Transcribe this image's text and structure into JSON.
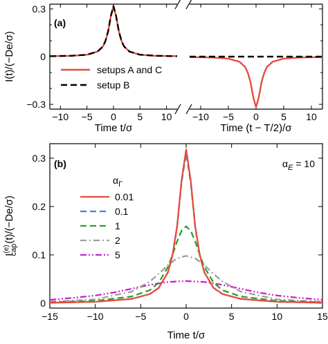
{
  "chart_data": [
    {
      "panel": "(a)",
      "type": "line",
      "ylabel": "I(t)/(−De/σ)",
      "ylim": [
        -0.33,
        0.33
      ],
      "yticks": [
        "0.3",
        "0",
        "−0.3"
      ],
      "axis_break": true,
      "left": {
        "xlabel": "Time t/σ",
        "xlim": [
          -12,
          12
        ],
        "xticks": [
          "−10",
          "−5",
          "0",
          "5",
          "10"
        ]
      },
      "right": {
        "xlabel": "Time (t − T/2)/σ",
        "xlim": [
          -12,
          12
        ],
        "xticks": [
          "−10",
          "−5",
          "0",
          "5",
          "10"
        ]
      },
      "legend_position": "bottom-left",
      "series": [
        {
          "name": "setups A and C",
          "color": "#e64b3c",
          "style": "solid",
          "left": {
            "x": [
              -12,
              -8,
              -5,
              -3,
              -2,
              -1.5,
              -1,
              -0.5,
              0,
              0.5,
              1,
              1.5,
              2,
              3,
              5,
              8,
              12
            ],
            "y": [
              0.003,
              0.005,
              0.012,
              0.032,
              0.064,
              0.1,
              0.16,
              0.255,
              0.318,
              0.255,
              0.16,
              0.1,
              0.064,
              0.032,
              0.012,
              0.005,
              0.003
            ]
          },
          "right": {
            "x": [
              -12,
              -8,
              -5,
              -3,
              -2,
              -1.5,
              -1,
              -0.5,
              0,
              0.5,
              1,
              1.5,
              2,
              3,
              5,
              8,
              12
            ],
            "y": [
              -0.003,
              -0.005,
              -0.012,
              -0.032,
              -0.064,
              -0.1,
              -0.16,
              -0.255,
              -0.318,
              -0.255,
              -0.16,
              -0.1,
              -0.064,
              -0.032,
              -0.012,
              -0.005,
              -0.003
            ]
          }
        },
        {
          "name": "setup B",
          "color": "#000000",
          "style": "dashed",
          "left": {
            "x": [
              -12,
              -8,
              -5,
              -3,
              -2,
              -1.5,
              -1,
              -0.5,
              0,
              0.5,
              1,
              1.5,
              2,
              3,
              5,
              8,
              12
            ],
            "y": [
              0.003,
              0.005,
              0.012,
              0.032,
              0.064,
              0.1,
              0.16,
              0.255,
              0.318,
              0.255,
              0.16,
              0.1,
              0.064,
              0.032,
              0.012,
              0.005,
              0.003
            ]
          },
          "right": {
            "x": [
              -12,
              12
            ],
            "y": [
              0,
              0
            ]
          }
        }
      ]
    },
    {
      "panel": "(b)",
      "type": "line",
      "ylabel": "I_cap^(e)(t)/(−De/σ)",
      "xlabel": "Time t/σ",
      "xlim": [
        -15,
        15
      ],
      "ylim": [
        -0.01,
        0.33
      ],
      "xticks": [
        "−15",
        "−10",
        "−5",
        "0",
        "5",
        "10",
        "15"
      ],
      "yticks": [
        "0",
        "0.1",
        "0.2",
        "0.3"
      ],
      "annotation": "α_E = 10",
      "legend_title": "α_Γ",
      "legend_position": "middle-left",
      "series": [
        {
          "name": "0.01",
          "color": "#e64b3c",
          "style": "solid",
          "x": [
            -15,
            -10,
            -6,
            -4,
            -3,
            -2,
            -1.5,
            -1,
            -0.5,
            0,
            0.5,
            1,
            1.5,
            2,
            3,
            4,
            6,
            10,
            15
          ],
          "y": [
            0.001,
            0.003,
            0.009,
            0.019,
            0.032,
            0.064,
            0.1,
            0.159,
            0.254,
            0.318,
            0.254,
            0.159,
            0.1,
            0.064,
            0.032,
            0.019,
            0.009,
            0.003,
            0.001
          ]
        },
        {
          "name": "0.1",
          "color": "#4a7fd4",
          "style": "dashed",
          "x": [
            -15,
            -10,
            -6,
            -4,
            -3,
            -2,
            -1.5,
            -1,
            -0.5,
            0,
            0.5,
            1,
            1.5,
            2,
            3,
            4,
            6,
            10,
            15
          ],
          "y": [
            0.001,
            0.003,
            0.009,
            0.019,
            0.032,
            0.064,
            0.099,
            0.157,
            0.25,
            0.31,
            0.25,
            0.157,
            0.099,
            0.064,
            0.032,
            0.019,
            0.009,
            0.003,
            0.001
          ]
        },
        {
          "name": "1",
          "color": "#2aa12a",
          "style": "dashed",
          "x": [
            -15,
            -10,
            -6,
            -4,
            -3,
            -2,
            -1.5,
            -1,
            -0.5,
            0,
            0.5,
            1,
            1.5,
            2,
            3,
            4,
            6,
            10,
            15
          ],
          "y": [
            0.002,
            0.005,
            0.014,
            0.027,
            0.043,
            0.075,
            0.1,
            0.128,
            0.15,
            0.159,
            0.15,
            0.128,
            0.1,
            0.075,
            0.043,
            0.027,
            0.014,
            0.005,
            0.002
          ]
        },
        {
          "name": "2",
          "color": "#9e9e9e",
          "style": "dashdot",
          "x": [
            -15,
            -10,
            -6,
            -4,
            -3,
            -2,
            -1,
            0,
            1,
            2,
            3,
            4,
            6,
            10,
            15
          ],
          "y": [
            0.003,
            0.008,
            0.024,
            0.045,
            0.061,
            0.079,
            0.093,
            0.098,
            0.093,
            0.079,
            0.061,
            0.045,
            0.024,
            0.008,
            0.003
          ]
        },
        {
          "name": "5",
          "color": "#cc22cc",
          "style": "dashdotdot",
          "x": [
            -15,
            -12,
            -10,
            -8,
            -6,
            -4,
            -2,
            0,
            2,
            4,
            6,
            8,
            10,
            12,
            15
          ],
          "y": [
            0.007,
            0.012,
            0.016,
            0.022,
            0.03,
            0.038,
            0.044,
            0.046,
            0.044,
            0.038,
            0.03,
            0.022,
            0.016,
            0.012,
            0.007
          ]
        }
      ]
    }
  ]
}
